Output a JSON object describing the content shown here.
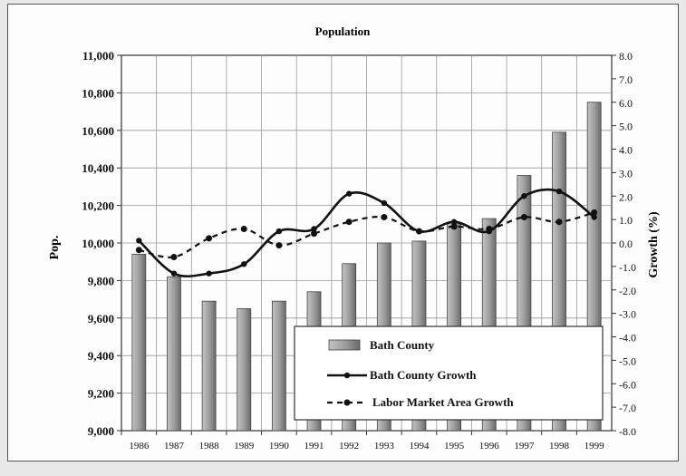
{
  "chart_data": {
    "type": "bar+line",
    "title": "Population",
    "ylabel": "Pop.",
    "y2label": "Growth (%)",
    "categories": [
      "1986",
      "1987",
      "1988",
      "1989",
      "1990",
      "1991",
      "1992",
      "1993",
      "1994",
      "1995",
      "1996",
      "1997",
      "1998",
      "1999"
    ],
    "ylim": [
      9000,
      11000
    ],
    "y2lim": [
      -8.0,
      8.0
    ],
    "yticks": [
      "9,000",
      "9,200",
      "9,400",
      "9,600",
      "9,800",
      "10,000",
      "10,200",
      "10,400",
      "10,600",
      "10,800",
      "11,000"
    ],
    "y2ticks": [
      "-8.0",
      "-7.0",
      "-6.0",
      "-5.0",
      "-4.0",
      "-3.0",
      "-2.0",
      "-1.0",
      "0.0",
      "1.0",
      "2.0",
      "3.0",
      "4.0",
      "5.0",
      "6.0",
      "7.0",
      "8.0"
    ],
    "grid": true,
    "legend_position": "lower-right",
    "series": [
      {
        "name": "Bath County",
        "kind": "bar",
        "axis": "left",
        "values": [
          9940,
          9820,
          9690,
          9650,
          9690,
          9740,
          9890,
          10000,
          10010,
          10110,
          10130,
          10360,
          10590,
          10750
        ]
      },
      {
        "name": "Bath County Growth",
        "kind": "line",
        "axis": "right",
        "values": [
          0.1,
          -1.3,
          -1.3,
          -0.9,
          0.5,
          0.6,
          2.1,
          1.7,
          0.5,
          0.9,
          0.5,
          2.0,
          2.2,
          1.1
        ]
      },
      {
        "name": "Labor Market Area Growth",
        "kind": "dashed",
        "axis": "right",
        "values": [
          -0.3,
          -0.6,
          0.2,
          0.6,
          -0.1,
          0.4,
          0.9,
          1.1,
          0.5,
          0.7,
          0.6,
          1.1,
          0.9,
          1.3
        ]
      }
    ],
    "colors": {
      "bar": "#9a9a9a",
      "line": "#111111"
    }
  }
}
